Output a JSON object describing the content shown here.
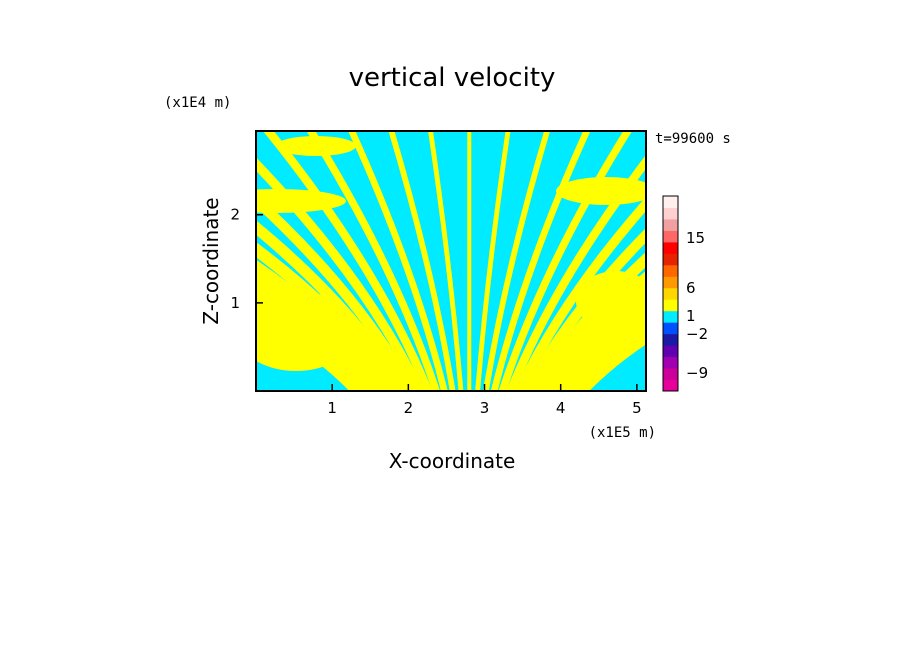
{
  "chart_data": {
    "type": "heatmap",
    "title": "vertical velocity",
    "xlabel": "X-coordinate",
    "ylabel": "Z-coordinate",
    "x_unit": "(x1E5 m)",
    "y_unit": "(x1E4 m)",
    "time_label": "t=99600 s",
    "xlim": [
      0,
      5.12
    ],
    "ylim": [
      0,
      2.95
    ],
    "x_ticks": [
      "1",
      "2",
      "3",
      "4",
      "5"
    ],
    "y_ticks": [
      "1",
      "2"
    ],
    "field_colors": {
      "positive": "#ffff00",
      "negative": "#00ebff"
    },
    "colorbar": {
      "tick_labels": [
        "15",
        "6",
        "1",
        "-2",
        "-9"
      ],
      "levels": [
        {
          "color": "#e60099"
        },
        {
          "color": "#cc0099"
        },
        {
          "color": "#a000b0"
        },
        {
          "color": "#6000b0"
        },
        {
          "color": "#1a1aa6"
        },
        {
          "color": "#0050ff"
        },
        {
          "color": "#00ebff"
        },
        {
          "color": "#ffff00"
        },
        {
          "color": "#ffd700"
        },
        {
          "color": "#ff9900"
        },
        {
          "color": "#ff6600"
        },
        {
          "color": "#e62200"
        },
        {
          "color": "#ff0000"
        },
        {
          "color": "#ff6666"
        },
        {
          "color": "#f0a0a0"
        },
        {
          "color": "#ffd0d0"
        },
        {
          "color": "#fff0ee"
        }
      ]
    }
  }
}
